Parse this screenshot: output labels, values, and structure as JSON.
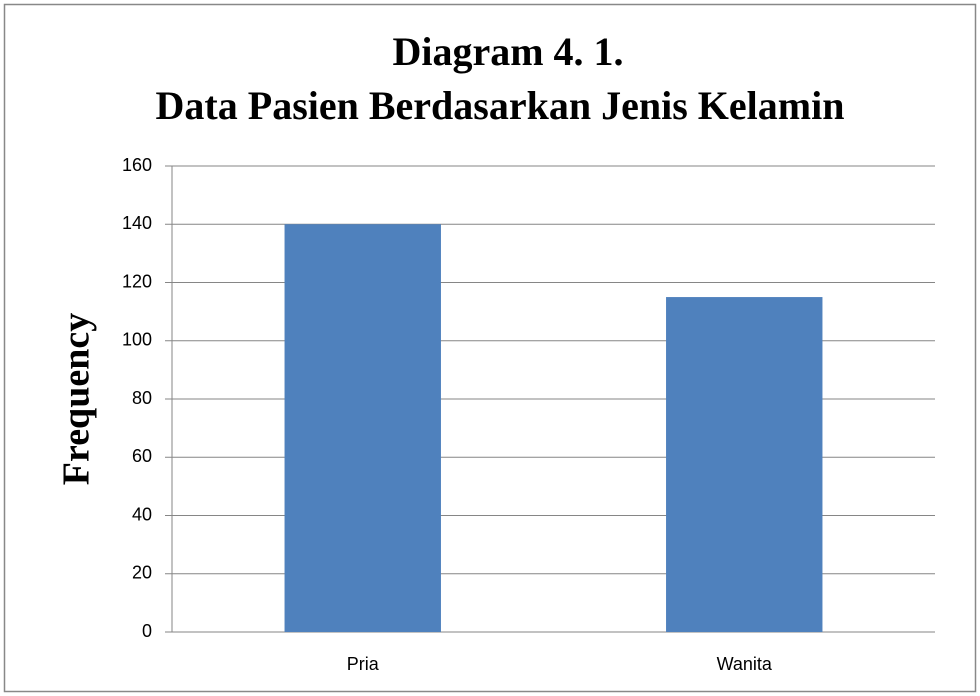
{
  "chart_data": {
    "type": "bar",
    "title": [
      "Diagram 4. 1.",
      "Data Pasien Berdasarkan Jenis Kelamin"
    ],
    "y_label": "Frequency",
    "categories": [
      "Pria",
      "Wanita"
    ],
    "values": [
      140,
      115
    ],
    "color": "#4f81bd",
    "ylim": [
      0,
      160
    ],
    "yticks": [
      0,
      20,
      40,
      60,
      80,
      100,
      120,
      140,
      160
    ],
    "grid": true
  }
}
